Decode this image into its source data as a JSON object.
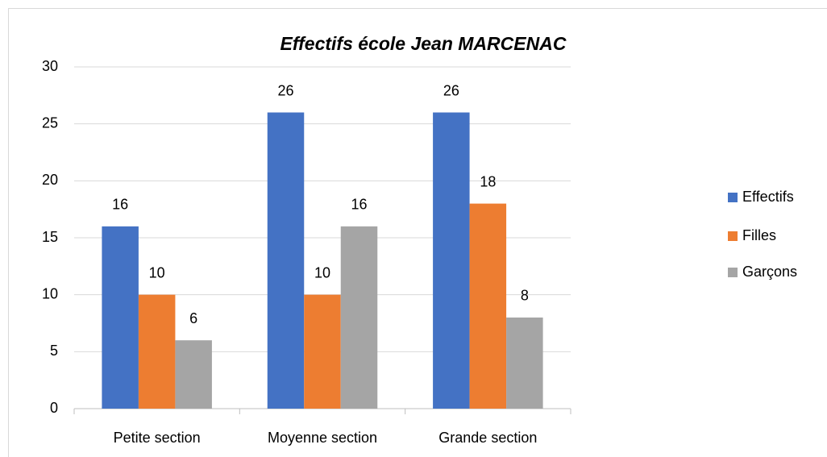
{
  "chart_data": {
    "type": "bar",
    "title": "Effectifs école Jean MARCENAC",
    "categories": [
      "Petite section",
      "Moyenne section",
      "Grande section"
    ],
    "series": [
      {
        "name": "Effectifs",
        "color": "#4472c4",
        "values": [
          16,
          26,
          26
        ]
      },
      {
        "name": "Filles",
        "color": "#ed7d31",
        "values": [
          10,
          10,
          18
        ]
      },
      {
        "name": "Garçons",
        "color": "#a5a5a5",
        "values": [
          6,
          16,
          8
        ]
      }
    ],
    "ylim": [
      0,
      30
    ],
    "yticks": [
      0,
      5,
      10,
      15,
      20,
      25,
      30
    ],
    "grid": true,
    "legend": "right"
  }
}
